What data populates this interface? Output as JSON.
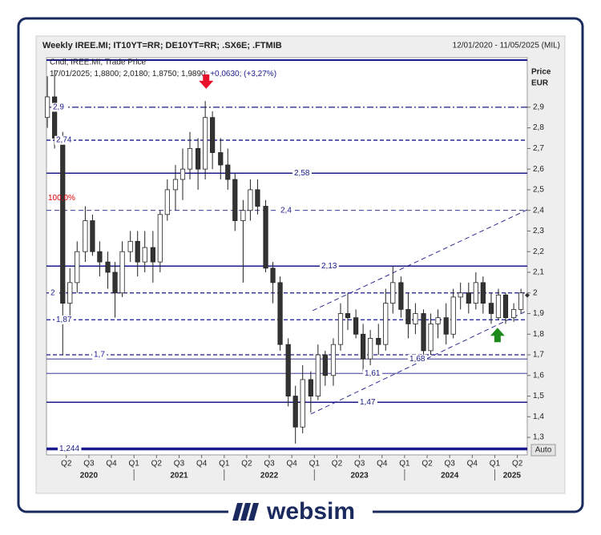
{
  "chart_data": {
    "type": "candlestick",
    "title": "Weekly IREE.MI; IT10YT=RR; DE10YT=RR; .SX6E; .FTMIB",
    "subtitle": "12/01/2020 - 11/05/2025 (MIL)",
    "legend": "Cndl; IREE.MI; Trade Price",
    "info": [
      "17/01/2025; 1,8800; 2,0180; 1,8750; 1,9890;",
      "+0,0630; (+3,27%)"
    ],
    "y_label": [
      "Price",
      "EUR"
    ],
    "scale_button": "Auto",
    "x": [
      2020.04,
      2020.12,
      2020.21,
      2020.29,
      2020.37,
      2020.46,
      2020.54,
      2020.62,
      2020.71,
      2020.79,
      2020.87,
      2020.96,
      2021.04,
      2021.12,
      2021.21,
      2021.29,
      2021.37,
      2021.46,
      2021.54,
      2021.62,
      2021.71,
      2021.79,
      2021.87,
      2021.96,
      2022.04,
      2022.12,
      2022.21,
      2022.29,
      2022.37,
      2022.46,
      2022.54,
      2022.62,
      2022.71,
      2022.79,
      2022.87,
      2022.96,
      2023.04,
      2023.12,
      2023.21,
      2023.29,
      2023.37,
      2023.46,
      2023.54,
      2023.62,
      2023.71,
      2023.79,
      2023.87,
      2023.96,
      2024.04,
      2024.12,
      2024.21,
      2024.29,
      2024.37,
      2024.46,
      2024.54,
      2024.62,
      2024.71,
      2024.79,
      2024.87,
      2024.96,
      2025.04,
      2025.12,
      2025.21,
      2025.29
    ],
    "open": [
      2.85,
      2.95,
      2.75,
      1.95,
      2.05,
      2.2,
      2.35,
      2.2,
      2.15,
      2.1,
      2.0,
      2.2,
      2.25,
      2.15,
      2.22,
      2.15,
      2.38,
      2.5,
      2.55,
      2.6,
      2.7,
      2.6,
      2.85,
      2.68,
      2.62,
      2.55,
      2.35,
      2.4,
      2.5,
      2.42,
      2.12,
      2.05,
      1.75,
      1.5,
      1.35,
      1.58,
      1.5,
      1.7,
      1.6,
      1.75,
      1.9,
      1.88,
      1.8,
      1.68,
      1.78,
      1.75,
      1.95,
      2.05,
      1.92,
      1.85,
      1.9,
      1.72,
      1.85,
      1.88,
      1.8,
      1.98,
      2.0,
      1.95,
      2.05,
      1.95,
      1.88,
      1.99,
      1.88,
      1.92
    ],
    "high": [
      3.05,
      3.08,
      2.78,
      2.12,
      2.25,
      2.42,
      2.38,
      2.25,
      2.2,
      2.15,
      2.25,
      2.3,
      2.3,
      2.3,
      2.3,
      2.4,
      2.55,
      2.62,
      2.7,
      2.78,
      2.75,
      2.93,
      2.88,
      2.75,
      2.7,
      2.58,
      2.45,
      2.55,
      2.55,
      2.45,
      2.15,
      2.08,
      1.78,
      1.55,
      1.65,
      1.62,
      1.75,
      1.72,
      1.78,
      1.95,
      2.0,
      1.92,
      1.85,
      1.82,
      1.85,
      2.02,
      2.13,
      2.08,
      2.0,
      1.95,
      1.92,
      1.9,
      1.92,
      1.95,
      2.02,
      2.05,
      2.05,
      2.1,
      2.08,
      2.0,
      2.02,
      2.0,
      1.95,
      2.02
    ],
    "low": [
      2.8,
      2.7,
      1.7,
      1.88,
      2.0,
      2.15,
      2.18,
      2.08,
      2.02,
      1.88,
      1.98,
      2.15,
      2.08,
      2.1,
      2.05,
      2.1,
      2.35,
      2.4,
      2.45,
      2.55,
      2.5,
      2.55,
      2.6,
      2.55,
      2.5,
      2.3,
      2.05,
      2.35,
      2.38,
      2.1,
      1.95,
      1.72,
      1.45,
      1.27,
      1.32,
      1.42,
      1.48,
      1.55,
      1.55,
      1.72,
      1.82,
      1.78,
      1.62,
      1.65,
      1.7,
      1.72,
      1.9,
      1.88,
      1.78,
      1.8,
      1.69,
      1.7,
      1.78,
      1.75,
      1.78,
      1.92,
      1.9,
      1.92,
      1.9,
      1.85,
      1.87,
      1.85,
      1.86,
      1.9
    ],
    "close": [
      2.95,
      2.75,
      1.95,
      2.05,
      2.2,
      2.35,
      2.2,
      2.15,
      2.1,
      2.0,
      2.2,
      2.25,
      2.15,
      2.22,
      2.15,
      2.38,
      2.5,
      2.55,
      2.6,
      2.7,
      2.6,
      2.85,
      2.68,
      2.62,
      2.55,
      2.35,
      2.4,
      2.5,
      2.42,
      2.12,
      2.05,
      1.75,
      1.5,
      1.35,
      1.58,
      1.5,
      1.7,
      1.6,
      1.75,
      1.9,
      1.88,
      1.8,
      1.68,
      1.78,
      1.75,
      1.95,
      2.05,
      1.92,
      1.85,
      1.9,
      1.72,
      1.85,
      1.88,
      1.8,
      1.98,
      2.0,
      1.95,
      2.05,
      1.95,
      1.9,
      1.99,
      1.88,
      1.92,
      2.0
    ],
    "up_color": "#ffffff",
    "down_color": "#333333",
    "xlim": [
      2020.03,
      2025.36
    ],
    "ylim": [
      1.215,
      3.14
    ],
    "xticks": [
      {
        "value": 2020.25,
        "label": "Q2"
      },
      {
        "value": 2020.5,
        "label": "Q3"
      },
      {
        "value": 2020.75,
        "label": "Q4"
      },
      {
        "value": 2021.0,
        "label": "Q1"
      },
      {
        "value": 2021.25,
        "label": "Q2"
      },
      {
        "value": 2021.5,
        "label": "Q3"
      },
      {
        "value": 2021.75,
        "label": "Q4"
      },
      {
        "value": 2022.0,
        "label": "Q1"
      },
      {
        "value": 2022.25,
        "label": "Q2"
      },
      {
        "value": 2022.5,
        "label": "Q3"
      },
      {
        "value": 2022.75,
        "label": "Q4"
      },
      {
        "value": 2023.0,
        "label": "Q1"
      },
      {
        "value": 2023.25,
        "label": "Q2"
      },
      {
        "value": 2023.5,
        "label": "Q3"
      },
      {
        "value": 2023.75,
        "label": "Q4"
      },
      {
        "value": 2024.0,
        "label": "Q1"
      },
      {
        "value": 2024.25,
        "label": "Q2"
      },
      {
        "value": 2024.5,
        "label": "Q3"
      },
      {
        "value": 2024.75,
        "label": "Q4"
      },
      {
        "value": 2025.0,
        "label": "Q1"
      },
      {
        "value": 2025.25,
        "label": "Q2"
      }
    ],
    "year_ticks": [
      {
        "value": 2020.5,
        "label": "2020"
      },
      {
        "value": 2021.5,
        "label": "2021"
      },
      {
        "value": 2022.5,
        "label": "2022"
      },
      {
        "value": 2023.5,
        "label": "2023"
      },
      {
        "value": 2024.5,
        "label": "2024"
      },
      {
        "value": 2025.19,
        "label": "2025"
      }
    ],
    "year_dividers": [
      2021,
      2022,
      2023,
      2024,
      2025
    ],
    "yticks": [
      {
        "value": 1.3,
        "label": "1,3"
      },
      {
        "value": 1.4,
        "label": "1,4"
      },
      {
        "value": 1.5,
        "label": "1,5"
      },
      {
        "value": 1.6,
        "label": "1,6"
      },
      {
        "value": 1.7,
        "label": "1,7"
      },
      {
        "value": 1.8,
        "label": "1,8"
      },
      {
        "value": 1.9,
        "label": "1,9"
      },
      2,
      {
        "value": 2.1,
        "label": "2,1"
      },
      {
        "value": 2.2,
        "label": "2,2"
      },
      {
        "value": 2.3,
        "label": "2,3"
      },
      {
        "value": 2.4,
        "label": "2,4"
      },
      {
        "value": 2.5,
        "label": "2,5"
      },
      {
        "value": 2.6,
        "label": "2,6"
      },
      {
        "value": 2.7,
        "label": "2,7"
      },
      {
        "value": 2.8,
        "label": "2,8"
      },
      {
        "value": 2.9,
        "label": "2,9"
      }
    ],
    "levels": [
      {
        "value": 2.9,
        "label": "2,9",
        "style": "dashdot"
      },
      {
        "value": 2.74,
        "label": "2,74",
        "style": "dashed"
      },
      {
        "value": 2.58,
        "label": "2,58",
        "style": "solid"
      },
      {
        "value": 2.4,
        "label": "2,4",
        "style": "thin-dashed"
      },
      {
        "value": 2.13,
        "label": "2,13",
        "style": "solid"
      },
      {
        "value": 2,
        "label": "2",
        "style": "dashed"
      },
      {
        "value": 1.87,
        "label": "1,87",
        "style": "dashed"
      },
      {
        "value": 1.7,
        "label": "1,7",
        "style": "dashed"
      },
      {
        "value": 1.68,
        "label": "1,68",
        "style": "thin"
      },
      {
        "value": 1.61,
        "label": "1,61",
        "style": "thin"
      },
      {
        "value": 1.47,
        "label": "1,47",
        "style": "solid"
      },
      {
        "value": 1.244,
        "label": "1,244",
        "style": "thick"
      }
    ],
    "level_color": "#1a1a8c",
    "trendlines": [
      {
        "x": [
          2022.98,
          2025.36
        ],
        "y": [
          1.914,
          2.403
        ]
      },
      {
        "x": [
          2022.96,
          2025.36
        ],
        "y": [
          1.413,
          1.914
        ]
      }
    ],
    "signals": [
      {
        "x": 2021.8,
        "y": 3.02,
        "direction": "down",
        "color": "#e8102a"
      },
      {
        "x": 2025.03,
        "y": 1.8,
        "direction": "up",
        "color": "#1a8a1a"
      }
    ],
    "last_price": 1.989,
    "annotation": {
      "text": "100,0%",
      "color": "#e00000"
    }
  },
  "footer": {
    "brand": "websim"
  }
}
